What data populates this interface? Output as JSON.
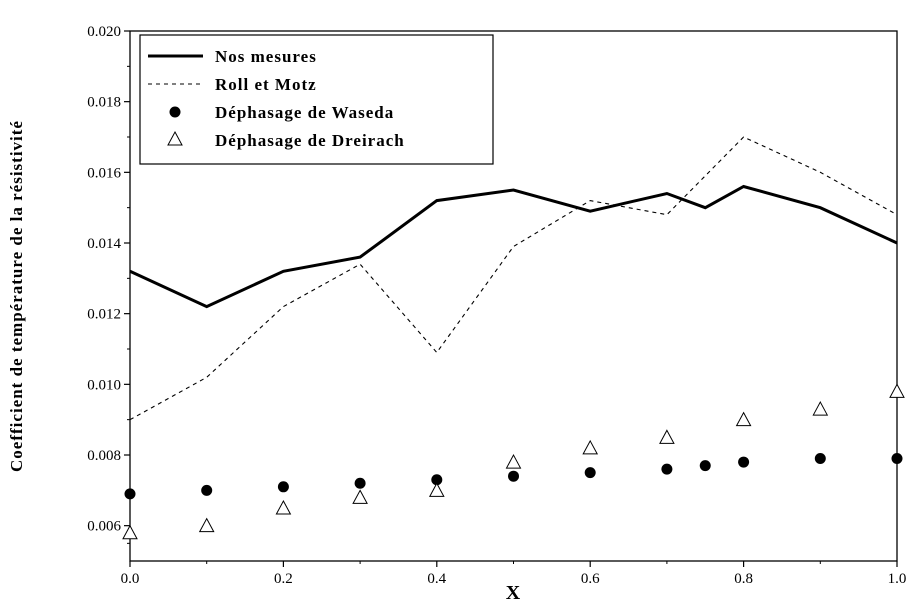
{
  "chart_data": {
    "type": "line",
    "xlabel": "X",
    "ylabel": "Coefficient de température de la résistivité",
    "xlim": [
      0.0,
      1.0
    ],
    "ylim": [
      0.005,
      0.02
    ],
    "xticks": [
      "0.0",
      "0.2",
      "0.4",
      "0.6",
      "0.8",
      "1.0"
    ],
    "xtick_values": [
      0.0,
      0.2,
      0.4,
      0.6,
      0.8,
      1.0
    ],
    "yticks": [
      "0.006",
      "0.008",
      "0.010",
      "0.012",
      "0.014",
      "0.016",
      "0.018",
      "0.020"
    ],
    "ytick_values": [
      0.006,
      0.008,
      0.01,
      0.012,
      0.014,
      0.016,
      0.018,
      0.02
    ],
    "grid": false,
    "legend_position": "top-left",
    "series": [
      {
        "name": "Nos mesures",
        "style": "solid-line",
        "x": [
          0.0,
          0.1,
          0.2,
          0.3,
          0.4,
          0.5,
          0.6,
          0.7,
          0.75,
          0.8,
          0.9,
          1.0
        ],
        "y": [
          0.0132,
          0.0122,
          0.0132,
          0.0136,
          0.0152,
          0.0155,
          0.0149,
          0.0154,
          0.015,
          0.0156,
          0.015,
          0.014
        ]
      },
      {
        "name": "Roll et Motz",
        "style": "dashed-line",
        "x": [
          0.0,
          0.1,
          0.2,
          0.3,
          0.4,
          0.5,
          0.6,
          0.7,
          0.8,
          0.9,
          1.0
        ],
        "y": [
          0.009,
          0.0102,
          0.0122,
          0.0134,
          0.0109,
          0.0139,
          0.0152,
          0.0148,
          0.017,
          0.016,
          0.0148
        ]
      },
      {
        "name": "Déphasage de Waseda",
        "style": "filled-circle",
        "x": [
          0.0,
          0.1,
          0.2,
          0.3,
          0.4,
          0.5,
          0.6,
          0.7,
          0.75,
          0.8,
          0.9,
          1.0
        ],
        "y": [
          0.0069,
          0.007,
          0.0071,
          0.0072,
          0.0073,
          0.0074,
          0.0075,
          0.0076,
          0.0077,
          0.0078,
          0.0079,
          0.0079
        ]
      },
      {
        "name": "Déphasage de Dreirach",
        "style": "open-triangle",
        "x": [
          0.0,
          0.1,
          0.2,
          0.3,
          0.4,
          0.5,
          0.6,
          0.7,
          0.8,
          0.9,
          1.0
        ],
        "y": [
          0.0058,
          0.006,
          0.0065,
          0.0068,
          0.007,
          0.0078,
          0.0082,
          0.0085,
          0.009,
          0.0093,
          0.0098
        ]
      }
    ]
  }
}
